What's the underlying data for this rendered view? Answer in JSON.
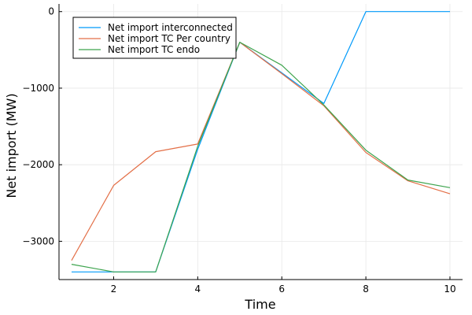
{
  "chart_data": {
    "type": "line",
    "title": "",
    "xlabel": "Time",
    "ylabel": "Net import (MW)",
    "xlim": [
      0.7,
      10.3
    ],
    "ylim": [
      -3500,
      100
    ],
    "x_ticks": [
      2,
      4,
      6,
      8,
      10
    ],
    "y_ticks": [
      0,
      -1000,
      -2000,
      -3000
    ],
    "x_tick_labels": [
      "2",
      "4",
      "6",
      "8",
      "10"
    ],
    "y_tick_labels": [
      "0",
      "−1000",
      "−2000",
      "−3000"
    ],
    "grid": true,
    "legend_position": "top-left",
    "x": [
      1,
      2,
      3,
      4,
      5,
      6,
      7,
      8,
      9,
      10
    ],
    "series": [
      {
        "name": "Net import interconnected",
        "color": "#009AFA",
        "values": [
          -3400,
          -3400,
          -3400,
          -1800,
          -400,
          -800,
          -1200,
          0,
          0,
          0
        ]
      },
      {
        "name": "Net import TC Per country",
        "color": "#E36F47",
        "values": [
          -3250,
          -2270,
          -1830,
          -1730,
          -400,
          -810,
          -1230,
          -1840,
          -2210,
          -2380
        ]
      },
      {
        "name": "Net import TC endo",
        "color": "#3EA44E",
        "values": [
          -3300,
          -3400,
          -3400,
          -1760,
          -400,
          -700,
          -1220,
          -1810,
          -2200,
          -2300
        ]
      }
    ]
  }
}
